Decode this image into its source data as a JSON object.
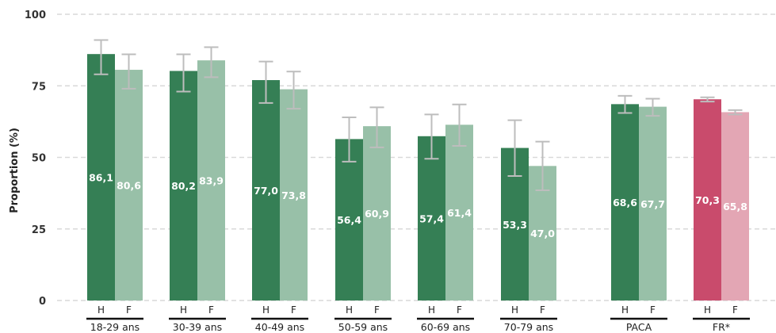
{
  "chart_data": {
    "type": "bar",
    "ylabel": "Proportion (%)",
    "ylim": [
      0,
      100
    ],
    "yticks": [
      "0",
      "25",
      "50",
      "75",
      "100"
    ],
    "grid": true,
    "sub_labels": [
      "H",
      "F"
    ],
    "groups": [
      {
        "label": "18-29 ans",
        "bars": [
          {
            "sex": "H",
            "value": 86.1,
            "label": "86,1",
            "err": [
              79.0,
              91.0
            ],
            "color": "#357f55"
          },
          {
            "sex": "F",
            "value": 80.6,
            "label": "80,6",
            "err": [
              74.0,
              86.0
            ],
            "color": "#98c0a8"
          }
        ]
      },
      {
        "label": "30-39 ans",
        "bars": [
          {
            "sex": "H",
            "value": 80.2,
            "label": "80,2",
            "err": [
              73.0,
              86.0
            ],
            "color": "#357f55"
          },
          {
            "sex": "F",
            "value": 83.9,
            "label": "83,9",
            "err": [
              78.0,
              88.5
            ],
            "color": "#98c0a8"
          }
        ]
      },
      {
        "label": "40-49 ans",
        "bars": [
          {
            "sex": "H",
            "value": 77.0,
            "label": "77,0",
            "err": [
              69.0,
              83.5
            ],
            "color": "#357f55"
          },
          {
            "sex": "F",
            "value": 73.8,
            "label": "73,8",
            "err": [
              67.0,
              80.0
            ],
            "color": "#98c0a8"
          }
        ]
      },
      {
        "label": "50-59 ans",
        "bars": [
          {
            "sex": "H",
            "value": 56.4,
            "label": "56,4",
            "err": [
              48.5,
              64.0
            ],
            "color": "#357f55"
          },
          {
            "sex": "F",
            "value": 60.9,
            "label": "60,9",
            "err": [
              53.5,
              67.5
            ],
            "color": "#98c0a8"
          }
        ]
      },
      {
        "label": "60-69 ans",
        "bars": [
          {
            "sex": "H",
            "value": 57.4,
            "label": "57,4",
            "err": [
              49.5,
              65.0
            ],
            "color": "#357f55"
          },
          {
            "sex": "F",
            "value": 61.4,
            "label": "61,4",
            "err": [
              54.0,
              68.5
            ],
            "color": "#98c0a8"
          }
        ]
      },
      {
        "label": "70-79 ans",
        "bars": [
          {
            "sex": "H",
            "value": 53.3,
            "label": "53,3",
            "err": [
              43.5,
              63.0
            ],
            "color": "#357f55"
          },
          {
            "sex": "F",
            "value": 47.0,
            "label": "47,0",
            "err": [
              38.5,
              55.5
            ],
            "color": "#98c0a8"
          }
        ]
      },
      {
        "label": "PACA",
        "bars": [
          {
            "sex": "H",
            "value": 68.6,
            "label": "68,6",
            "err": [
              65.5,
              71.5
            ],
            "color": "#357f55"
          },
          {
            "sex": "F",
            "value": 67.7,
            "label": "67,7",
            "err": [
              64.5,
              70.5
            ],
            "color": "#98c0a8"
          }
        ]
      },
      {
        "label": "FR*",
        "bars": [
          {
            "sex": "H",
            "value": 70.3,
            "label": "70,3",
            "err": [
              69.5,
              71.0
            ],
            "color": "#c94b6c"
          },
          {
            "sex": "F",
            "value": 65.8,
            "label": "65,8",
            "err": [
              65.0,
              66.5
            ],
            "color": "#e3a6b4"
          }
        ]
      }
    ]
  }
}
